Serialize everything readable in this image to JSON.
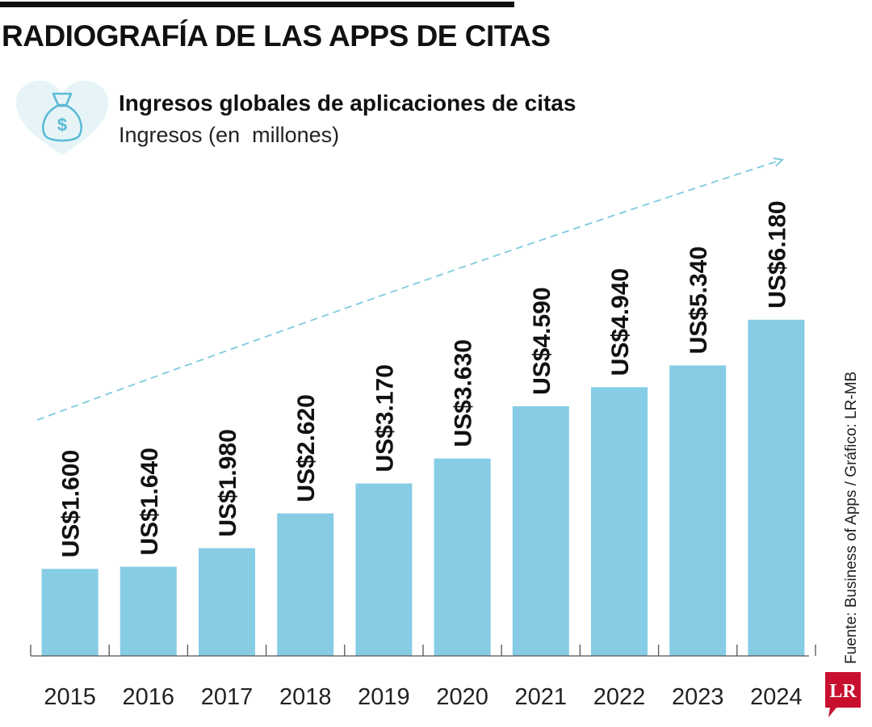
{
  "header": {
    "headline": "RADIOGRAFÍA DE LAS APPS DE CITAS",
    "badge_icon": "money-bag-icon",
    "badge_symbol": "$"
  },
  "source_note": "Fuente: Business of Apps / Gráfico: LR-MB",
  "logo": {
    "text": "LR",
    "color": "#c8102e"
  },
  "colors": {
    "bar": "#86cce5",
    "trend": "#7ccbdc",
    "badge_heart": "#e6f4f8"
  },
  "chart_data": {
    "type": "bar",
    "title": "Ingresos globales de aplicaciones de citas",
    "subtitle": "Ingresos (en  millones)",
    "categories": [
      "2015",
      "2016",
      "2017",
      "2018",
      "2019",
      "2020",
      "2021",
      "2022",
      "2023",
      "2024"
    ],
    "values": [
      1600,
      1640,
      1980,
      2620,
      3170,
      3630,
      4590,
      4940,
      5340,
      6180
    ],
    "data_labels": [
      "US$1.600",
      "US$1.640",
      "US$1.980",
      "US$2.620",
      "US$3.170",
      "US$3.630",
      "US$4.590",
      "US$4.940",
      "US$5.340",
      "US$6.180"
    ],
    "ylim": [
      0,
      6500
    ],
    "grid": false,
    "legend": "none",
    "trend_arrow": true
  }
}
